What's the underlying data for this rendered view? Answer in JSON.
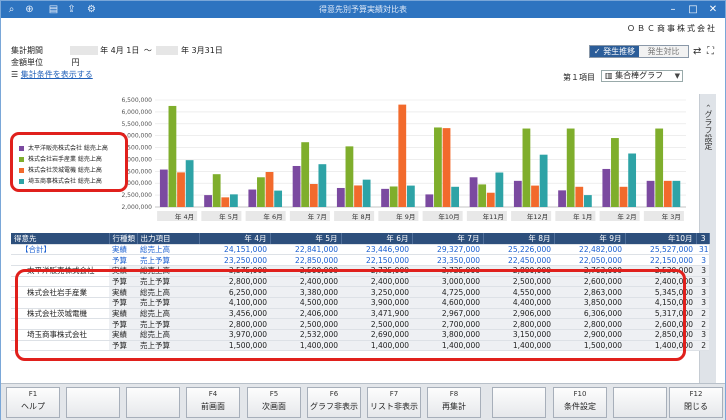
{
  "window": {
    "title": "得意先別予算実績対比表"
  },
  "company": "ＯＢＣ商事株式会社",
  "period": {
    "label": "集計期間",
    "start": "年 4月 1日",
    "sep": "～",
    "end": "年 3月31日"
  },
  "unit": {
    "label": "金額単位",
    "value": "円"
  },
  "conditions_link": "集計条件を表示する",
  "view_toggle": {
    "left": "✓ 発生推移",
    "right": "発生対比"
  },
  "item_selector": {
    "label": "第１項目",
    "value": "集合棒グラフ"
  },
  "side_tab": "グラフ設定",
  "legend": [
    {
      "label": "太平洋販売株式会社 総売上高",
      "color": "#7b4aa0"
    },
    {
      "label": "株式会社岩手産業 総売上高",
      "color": "#7fae2c"
    },
    {
      "label": "株式会社茨城電機 総売上高",
      "color": "#f26a2c"
    },
    {
      "label": "埼玉商事株式会社 総売上高",
      "color": "#2ea3a6"
    }
  ],
  "chart_data": {
    "type": "bar",
    "categories": [
      "年 4月",
      "年 5月",
      "年 6月",
      "年 7月",
      "年 8月",
      "年 9月",
      "年10月",
      "年11月",
      "年12月",
      "年 1月",
      "年 2月",
      "年 3月"
    ],
    "y_ticks": [
      "6,500,000",
      "6,000,000",
      "5,500,000",
      "5,000,000",
      "4,500,000",
      "4,000,000",
      "3,500,000",
      "3,000,000",
      "2,500,000",
      "2,000,000"
    ],
    "ylim": [
      2000000,
      6500000
    ],
    "series": [
      {
        "name": "太平洋販売株式会社 総売上高",
        "color": "#7b4aa0",
        "values": [
          3575000,
          2500000,
          2735000,
          3725000,
          2800000,
          2763000,
          2530000,
          3250000,
          3100000,
          2700000,
          3600000,
          3100000
        ]
      },
      {
        "name": "株式会社岩手産業 総売上高",
        "color": "#7fae2c",
        "values": [
          6250000,
          3380000,
          3250000,
          4725000,
          4550000,
          2863000,
          5345000,
          2950000,
          5300000,
          5300000,
          4900000,
          5300000
        ]
      },
      {
        "name": "株式会社茨城電機 総売上高",
        "color": "#f26a2c",
        "values": [
          3456000,
          2406000,
          3471900,
          2967000,
          2906000,
          6306000,
          5317000,
          2600000,
          2900000,
          2850000,
          2850000,
          3100000
        ]
      },
      {
        "name": "埼玉商事株式会社 総売上高",
        "color": "#2ea3a6",
        "values": [
          3970000,
          2532000,
          2690000,
          3800000,
          3150000,
          2900000,
          2850000,
          3450000,
          4200000,
          2500000,
          4250000,
          3100000
        ]
      }
    ]
  },
  "table": {
    "headers": [
      "得意先",
      "行種類",
      "出力項目",
      "年 4月",
      "年 5月",
      "年 6月",
      "年 7月",
      "年 8月",
      "年 9月",
      "年10月",
      "3"
    ],
    "rows": [
      {
        "name": "【合計】",
        "kind": "実績",
        "item": "総売上高",
        "vals": [
          "24,151,000",
          "22,841,000",
          "23,446,900",
          "29,327,000",
          "25,226,000",
          "22,482,000",
          "25,527,000",
          "31"
        ],
        "cls": "total"
      },
      {
        "name": "",
        "kind": "予算",
        "item": "売上予算",
        "vals": [
          "23,250,000",
          "22,850,000",
          "22,150,000",
          "23,350,000",
          "22,450,000",
          "22,050,000",
          "22,150,000",
          "3"
        ],
        "cls": "total"
      },
      {
        "name": "太平洋販売株式会社",
        "kind": "実績",
        "item": "総売上高",
        "vals": [
          "3,575,000",
          "2,500,000",
          "2,735,000",
          "3,725,000",
          "2,800,000",
          "2,763,000",
          "2,530,000",
          "3"
        ],
        "cls": "row"
      },
      {
        "name": "",
        "kind": "予算",
        "item": "売上予算",
        "vals": [
          "2,800,000",
          "2,400,000",
          "2,400,000",
          "3,000,000",
          "2,500,000",
          "2,600,000",
          "2,400,000",
          "3"
        ],
        "cls": "row"
      },
      {
        "name": "株式会社岩手産業",
        "kind": "実績",
        "item": "総売上高",
        "vals": [
          "6,250,000",
          "3,380,000",
          "3,250,000",
          "4,725,000",
          "4,550,000",
          "2,863,000",
          "5,345,000",
          "3"
        ],
        "cls": "row"
      },
      {
        "name": "",
        "kind": "予算",
        "item": "売上予算",
        "vals": [
          "4,100,000",
          "4,500,000",
          "3,900,000",
          "4,600,000",
          "4,400,000",
          "3,850,000",
          "4,150,000",
          "3"
        ],
        "cls": "row"
      },
      {
        "name": "株式会社茨城電機",
        "kind": "実績",
        "item": "総売上高",
        "vals": [
          "3,456,000",
          "2,406,000",
          "3,471,900",
          "2,967,000",
          "2,906,000",
          "6,306,000",
          "5,317,000",
          "2"
        ],
        "cls": "row"
      },
      {
        "name": "",
        "kind": "予算",
        "item": "売上予算",
        "vals": [
          "2,800,000",
          "2,500,000",
          "2,500,000",
          "2,700,000",
          "2,800,000",
          "2,800,000",
          "2,600,000",
          "2"
        ],
        "cls": "row"
      },
      {
        "name": "埼玉商事株式会社",
        "kind": "実績",
        "item": "総売上高",
        "vals": [
          "3,970,000",
          "2,532,000",
          "2,690,000",
          "3,800,000",
          "3,150,000",
          "2,900,000",
          "2,850,000",
          "3"
        ],
        "cls": "row"
      },
      {
        "name": "",
        "kind": "予算",
        "item": "売上予算",
        "vals": [
          "1,500,000",
          "1,400,000",
          "1,400,000",
          "1,400,000",
          "1,400,000",
          "1,500,000",
          "1,400,000",
          "2"
        ],
        "cls": "row"
      }
    ]
  },
  "fkeys": [
    {
      "key": "F1",
      "label": "ヘルプ"
    },
    {
      "key": "",
      "label": ""
    },
    {
      "key": "",
      "label": ""
    },
    {
      "key": "F4",
      "label": "前画面"
    },
    {
      "key": "F5",
      "label": "次画面"
    },
    {
      "key": "F6",
      "label": "グラフ非表示"
    },
    {
      "key": "F7",
      "label": "リスト非表示"
    },
    {
      "key": "F8",
      "label": "再集計"
    },
    {
      "key": "",
      "label": ""
    },
    {
      "key": "F10",
      "label": "条件設定"
    },
    {
      "key": "",
      "label": ""
    },
    {
      "key": "F12",
      "label": "閉じる"
    }
  ]
}
